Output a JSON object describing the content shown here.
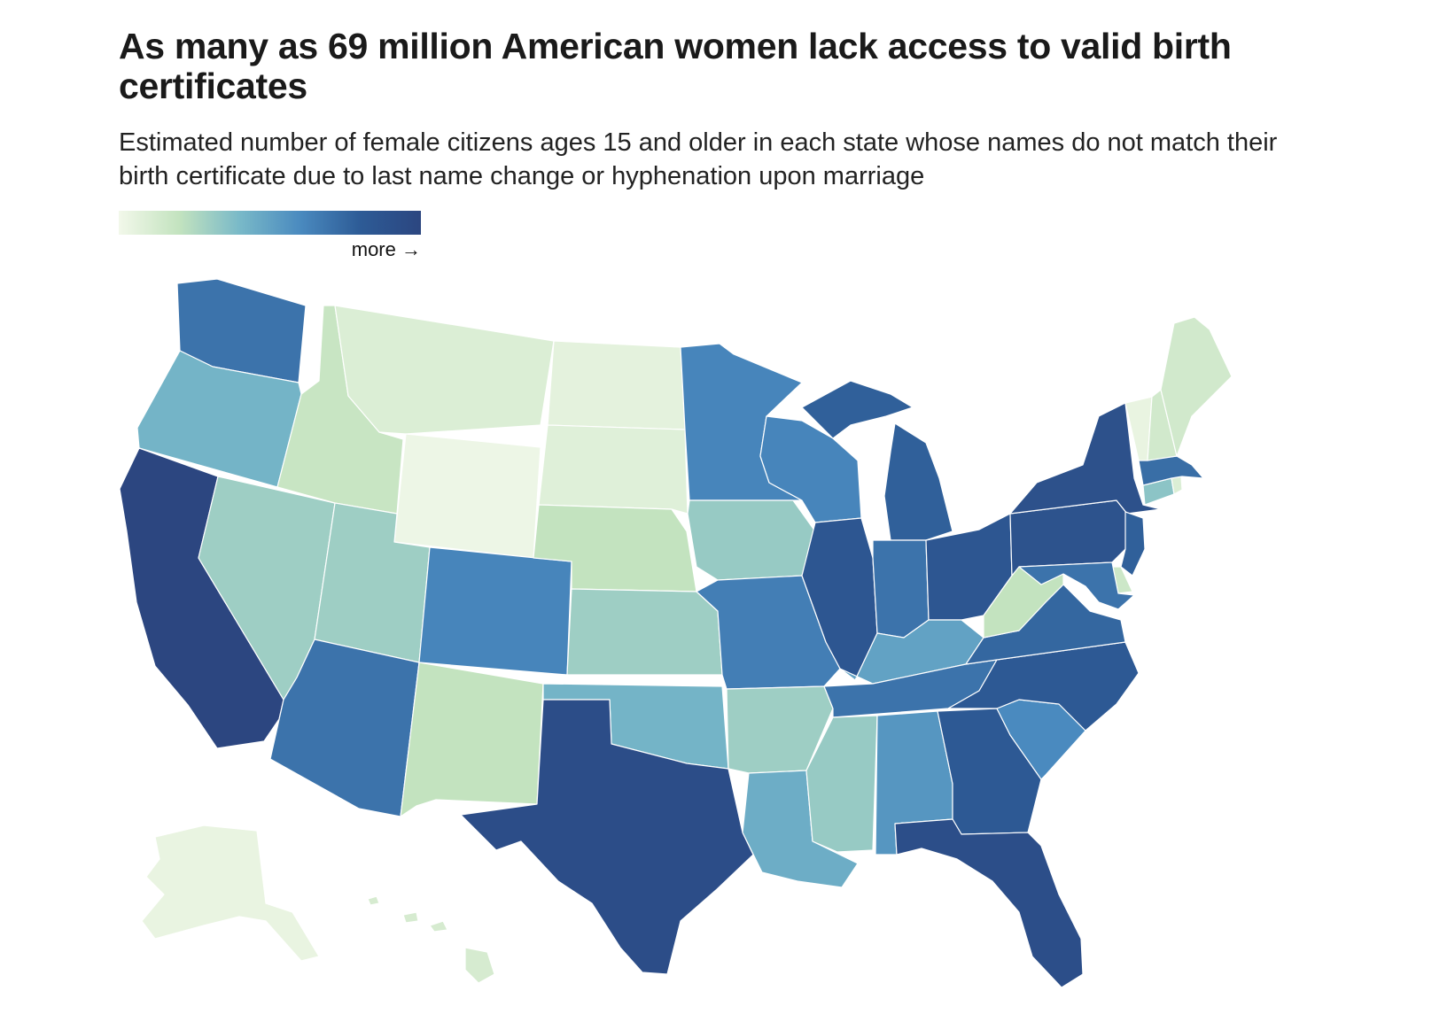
{
  "title": "As many as 69 million American women lack access to valid birth certificates",
  "subtitle": "Estimated number of female citizens ages 15 and older in each state whose names do not match their birth certificate due to last name change or hyphenation upon marriage",
  "legend": {
    "label": "more →",
    "colors": [
      "#f2f8ea",
      "#c3e3bf",
      "#79b9c8",
      "#4a8abf",
      "#2d5b96",
      "#2c4680"
    ]
  },
  "map": {
    "type": "choropleth",
    "scale": "relative shading (lighter = fewer, darker = more)",
    "states": [
      {
        "id": "WA",
        "level": 0.7
      },
      {
        "id": "OR",
        "level": 0.42
      },
      {
        "id": "CA",
        "level": 1.0
      },
      {
        "id": "NV",
        "level": 0.3
      },
      {
        "id": "ID",
        "level": 0.18
      },
      {
        "id": "MT",
        "level": 0.1
      },
      {
        "id": "WY",
        "level": 0.02
      },
      {
        "id": "UT",
        "level": 0.3
      },
      {
        "id": "AZ",
        "level": 0.7
      },
      {
        "id": "CO",
        "level": 0.62
      },
      {
        "id": "NM",
        "level": 0.2
      },
      {
        "id": "ND",
        "level": 0.06
      },
      {
        "id": "SD",
        "level": 0.08
      },
      {
        "id": "NE",
        "level": 0.2
      },
      {
        "id": "KS",
        "level": 0.3
      },
      {
        "id": "OK",
        "level": 0.42
      },
      {
        "id": "TX",
        "level": 0.93
      },
      {
        "id": "MN",
        "level": 0.62
      },
      {
        "id": "IA",
        "level": 0.32
      },
      {
        "id": "MO",
        "level": 0.65
      },
      {
        "id": "AR",
        "level": 0.3
      },
      {
        "id": "LA",
        "level": 0.45
      },
      {
        "id": "WI",
        "level": 0.62
      },
      {
        "id": "IL",
        "level": 0.85
      },
      {
        "id": "MI",
        "level": 0.78
      },
      {
        "id": "IN",
        "level": 0.7
      },
      {
        "id": "OH",
        "level": 0.85
      },
      {
        "id": "KY",
        "level": 0.5
      },
      {
        "id": "TN",
        "level": 0.7
      },
      {
        "id": "MS",
        "level": 0.32
      },
      {
        "id": "AL",
        "level": 0.55
      },
      {
        "id": "GA",
        "level": 0.82
      },
      {
        "id": "FL",
        "level": 0.92
      },
      {
        "id": "SC",
        "level": 0.6
      },
      {
        "id": "NC",
        "level": 0.82
      },
      {
        "id": "VA",
        "level": 0.75
      },
      {
        "id": "WV",
        "level": 0.2
      },
      {
        "id": "PA",
        "level": 0.88
      },
      {
        "id": "NY",
        "level": 0.9
      },
      {
        "id": "NJ",
        "level": 0.78
      },
      {
        "id": "DE",
        "level": 0.16
      },
      {
        "id": "MD",
        "level": 0.7
      },
      {
        "id": "CT",
        "level": 0.35
      },
      {
        "id": "RI",
        "level": 0.1
      },
      {
        "id": "MA",
        "level": 0.72
      },
      {
        "id": "VT",
        "level": 0.04
      },
      {
        "id": "NH",
        "level": 0.14
      },
      {
        "id": "ME",
        "level": 0.14
      },
      {
        "id": "AK",
        "level": 0.04
      },
      {
        "id": "HI",
        "level": 0.12
      }
    ]
  }
}
